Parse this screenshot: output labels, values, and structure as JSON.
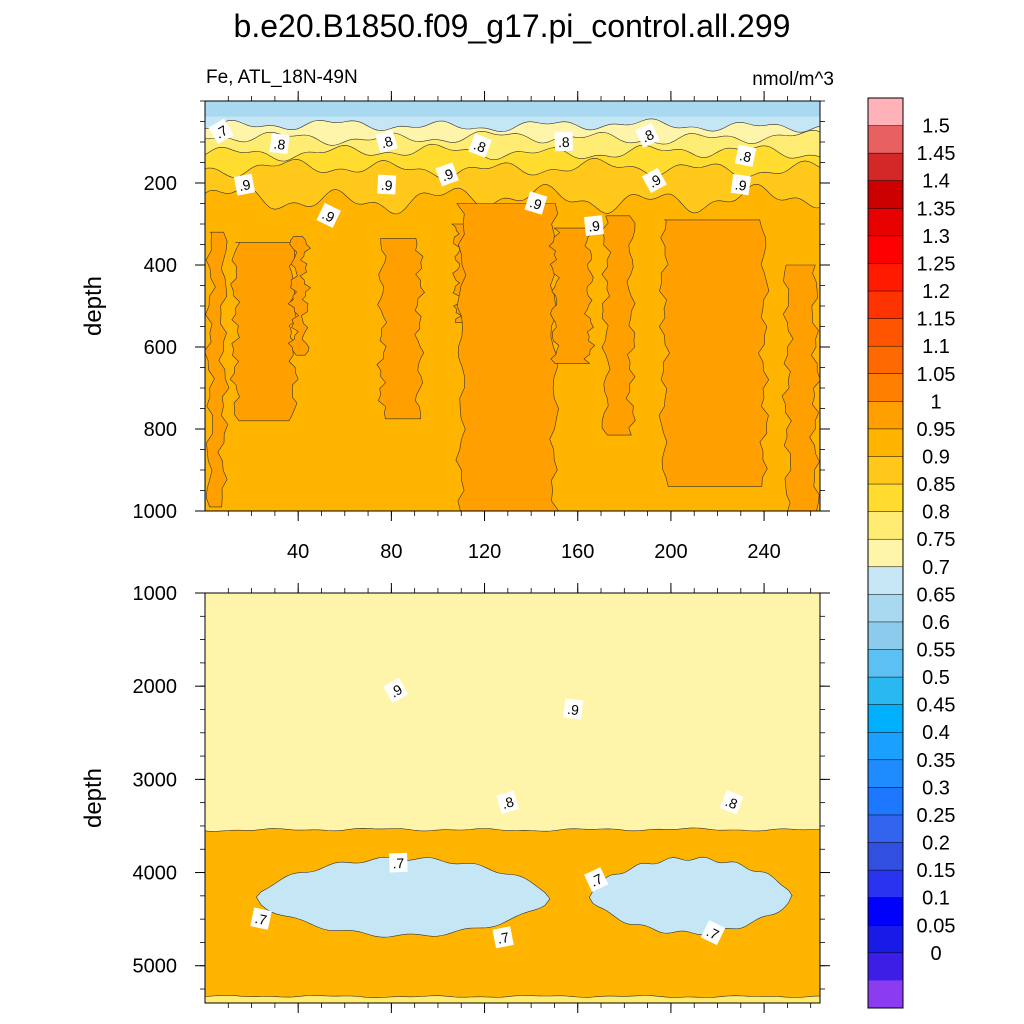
{
  "title": "b.e20.B1850.f09_g17.pi_control.all.299",
  "chart_data": {
    "type": "heatmap",
    "title": "b.e20.B1850.f09_g17.pi_control.all.299",
    "left_string": "Fe, ATL_18N-49N",
    "units": "nmol/m^3",
    "x_range": [
      0,
      264
    ],
    "x_ticks": [
      40,
      80,
      120,
      160,
      200,
      240
    ],
    "panels": [
      {
        "ylabel": "depth",
        "ylim": [
          0,
          1000
        ],
        "y_ticks": [
          200,
          400,
          600,
          800,
          1000
        ],
        "inverted": true,
        "layers": [
          {
            "value": 0.62,
            "depth_mean": 0,
            "amp": 0
          },
          {
            "value": 0.67,
            "depth_mean": 60,
            "amp": 18
          },
          {
            "value": 0.72,
            "depth_mean": 90,
            "amp": 20
          },
          {
            "value": 0.77,
            "depth_mean": 125,
            "amp": 22
          },
          {
            "value": 0.82,
            "depth_mean": 165,
            "amp": 26
          },
          {
            "value": 0.87,
            "depth_mean": 240,
            "amp": 40
          }
        ],
        "blobs_095": [
          {
            "x": [
              2,
              8
            ],
            "top": 320,
            "bottom": 990
          },
          {
            "x": [
              13,
              38
            ],
            "top": 345,
            "bottom": 780
          },
          {
            "x": [
              38,
              43
            ],
            "top": 330,
            "bottom": 620
          },
          {
            "x": [
              76,
              92
            ],
            "top": 335,
            "bottom": 775
          },
          {
            "x": [
              108,
              117
            ],
            "top": 300,
            "bottom": 540
          },
          {
            "x": [
              110,
              150
            ],
            "top": 250,
            "bottom": 1000
          },
          {
            "x": [
              150,
              165
            ],
            "top": 310,
            "bottom": 640
          },
          {
            "x": [
              172,
              183
            ],
            "top": 280,
            "bottom": 815
          },
          {
            "x": [
              197,
              240
            ],
            "top": 290,
            "bottom": 940
          },
          {
            "x": [
              250,
              262
            ],
            "top": 400,
            "bottom": 1000
          }
        ],
        "contour_labels": [
          {
            "text": ".7",
            "x": 7,
            "y": 75
          },
          {
            "text": ".8",
            "x": 32,
            "y": 105
          },
          {
            "text": ".8",
            "x": 78,
            "y": 100
          },
          {
            "text": ".8",
            "x": 118,
            "y": 110
          },
          {
            "text": ".8",
            "x": 154,
            "y": 100
          },
          {
            "text": ".8",
            "x": 190,
            "y": 85
          },
          {
            "text": ".8",
            "x": 232,
            "y": 135
          },
          {
            "text": ".9",
            "x": 17,
            "y": 205
          },
          {
            "text": ".9",
            "x": 53,
            "y": 280
          },
          {
            "text": ".9",
            "x": 78,
            "y": 205
          },
          {
            "text": ".9",
            "x": 104,
            "y": 180
          },
          {
            "text": ".9",
            "x": 142,
            "y": 250
          },
          {
            "text": ".9",
            "x": 167,
            "y": 305
          },
          {
            "text": ".9",
            "x": 193,
            "y": 195
          },
          {
            "text": ".9",
            "x": 230,
            "y": 205
          }
        ]
      },
      {
        "ylabel": "depth",
        "ylim": [
          1000,
          5400
        ],
        "y_ticks": [
          1000,
          2000,
          3000,
          4000,
          5000
        ],
        "inverted": true,
        "layers": [
          {
            "value": 0.92,
            "depth_mean": 1000,
            "amp": 0
          },
          {
            "value": 0.87,
            "depth_mean": 2150,
            "amp": 90
          },
          {
            "value": 0.82,
            "depth_mean": 2780,
            "amp": 50
          },
          {
            "value": 0.77,
            "depth_mean": 3250,
            "amp": 40
          },
          {
            "value": 0.72,
            "depth_mean": 3540,
            "amp": 20
          },
          {
            "value": 0.77,
            "depth_mean": 5330,
            "amp": 15
          }
        ],
        "lobes_068": [
          {
            "x": [
              22,
              148
            ],
            "top": 3850,
            "bottom": 4680
          },
          {
            "x": [
              165,
              252
            ],
            "top": 3850,
            "bottom": 4650
          }
        ],
        "contour_labels": [
          {
            "text": ".9",
            "x": 82,
            "y": 2050
          },
          {
            "text": ".9",
            "x": 158,
            "y": 2250
          },
          {
            "text": ".8",
            "x": 130,
            "y": 3250
          },
          {
            "text": ".8",
            "x": 226,
            "y": 3250
          },
          {
            "text": ".7",
            "x": 83,
            "y": 3900
          },
          {
            "text": ".7",
            "x": 168,
            "y": 4080
          },
          {
            "text": ".7",
            "x": 24,
            "y": 4500
          },
          {
            "text": ".7",
            "x": 128,
            "y": 4700
          },
          {
            "text": ".7",
            "x": 218,
            "y": 4650
          }
        ]
      }
    ],
    "colorbar": {
      "labels": [
        "1.5",
        "1.45",
        "1.4",
        "1.35",
        "1.3",
        "1.25",
        "1.2",
        "1.15",
        "1.1",
        "1.05",
        "1",
        "0.95",
        "0.9",
        "0.85",
        "0.8",
        "0.75",
        "0.7",
        "0.65",
        "0.6",
        "0.55",
        "0.5",
        "0.45",
        "0.4",
        "0.35",
        "0.3",
        "0.25",
        "0.2",
        "0.15",
        "0.1",
        "0.05",
        "0"
      ],
      "colors_top_to_bottom": [
        "#ffb3b8",
        "#e86060",
        "#d42828",
        "#cc0000",
        "#e60000",
        "#ff0000",
        "#ff1a00",
        "#ff3300",
        "#ff5500",
        "#ff6a00",
        "#ff8000",
        "#ffa000",
        "#ffb400",
        "#ffc81a",
        "#ffdc2e",
        "#ffec73",
        "#fff5aa",
        "#c5e6f5",
        "#a8d9f0",
        "#8dcbec",
        "#5cc0f2",
        "#29b8f0",
        "#00b0ff",
        "#1aa0ff",
        "#1e8cff",
        "#1e78ff",
        "#3264f0",
        "#3250e0",
        "#2a34f0",
        "#0000ff",
        "#1a1ae6",
        "#3c1ee6",
        "#8c3cf0"
      ]
    }
  }
}
